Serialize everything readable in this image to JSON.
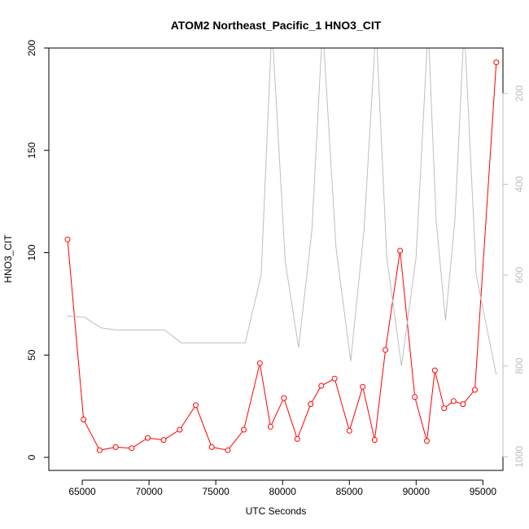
{
  "chart_data": {
    "type": "line",
    "title": "ATOM2 Northeast_Pacific_1 HNO3_CIT",
    "xlabel": "UTC Seconds",
    "ylabel": "HNO3_CIT",
    "xlim": [
      62500,
      96500
    ],
    "ylim": [
      0,
      200
    ],
    "x_ticks": [
      65000,
      70000,
      75000,
      80000,
      85000,
      90000,
      95000
    ],
    "y_ticks": [
      0,
      50,
      100,
      150,
      200
    ],
    "right_axis": {
      "ticks": [
        200,
        400,
        600,
        800,
        1000
      ],
      "reversed": true,
      "range": [
        100,
        1030
      ]
    },
    "colors": {
      "primary": "#ff0000",
      "secondary": "#bebebe"
    },
    "series": [
      {
        "axis": "left",
        "style": "line-with-open-circles",
        "x": [
          63900,
          65100,
          66300,
          67500,
          68700,
          69900,
          71100,
          72300,
          73500,
          74700,
          75900,
          77100,
          78300,
          79100,
          80100,
          81100,
          82100,
          82900,
          83900,
          85000,
          86000,
          86900,
          87700,
          88800,
          89900,
          90800,
          91400,
          92100,
          92800,
          93500,
          94400,
          96000
        ],
        "values": [
          106.5,
          18.5,
          3.5,
          5,
          4.5,
          9.5,
          8.5,
          13.5,
          25.5,
          5,
          3.5,
          13.5,
          46,
          15,
          29,
          9,
          26,
          35,
          38.5,
          13,
          34.5,
          8.5,
          52.5,
          101,
          29.5,
          8,
          42.5,
          24,
          27.5,
          26,
          33,
          193
        ]
      },
      {
        "axis": "right",
        "style": "line",
        "x": [
          63900,
          65200,
          66400,
          67600,
          68800,
          70000,
          71200,
          72400,
          73600,
          74800,
          76000,
          77200,
          78400,
          79200,
          80200,
          81200,
          82200,
          83000,
          84000,
          85100,
          86100,
          87000,
          87800,
          88900,
          90000,
          90900,
          91500,
          92200,
          92900,
          93600,
          94500,
          96000
        ],
        "values": [
          690,
          693,
          716,
          721,
          721,
          721,
          721,
          749,
          749,
          749,
          749,
          749,
          600,
          50,
          570,
          760,
          500,
          50,
          540,
          790,
          500,
          50,
          560,
          800,
          560,
          50,
          480,
          700,
          480,
          50,
          600,
          820
        ]
      }
    ]
  }
}
